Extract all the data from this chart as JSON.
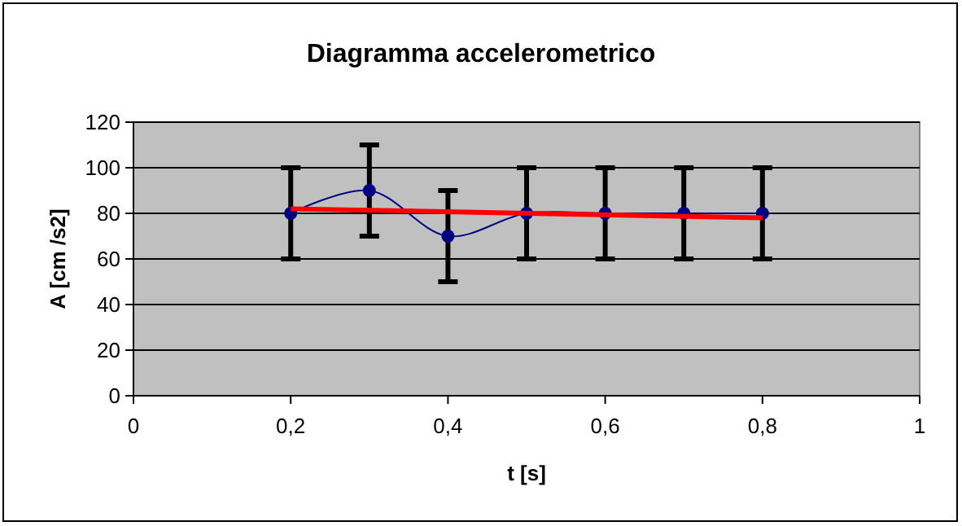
{
  "chart_data": {
    "type": "line",
    "title": "Diagramma accelerometrico",
    "xlabel": "t [s]",
    "ylabel": "A [cm /s2]",
    "x": [
      0.2,
      0.3,
      0.4,
      0.5,
      0.6,
      0.7,
      0.8
    ],
    "series": [
      {
        "color": "#000080",
        "values": [
          80,
          90,
          70,
          80,
          80,
          80,
          80
        ],
        "errors": [
          20,
          20,
          20,
          20,
          20,
          20,
          20
        ],
        "marker": "circle"
      },
      {
        "type": "line",
        "color": "#ff0000",
        "x": [
          0.2,
          0.8
        ],
        "values": [
          82,
          78
        ],
        "marker": "none"
      }
    ],
    "xlim": [
      0,
      1
    ],
    "xticks": [
      0,
      {
        "value": 0.2,
        "label": "0,2"
      },
      {
        "value": 0.4,
        "label": "0,4"
      },
      {
        "value": 0.6,
        "label": "0,6"
      },
      {
        "value": 0.8,
        "label": "0,8"
      },
      1
    ],
    "ylim": [
      0,
      120
    ],
    "yticks": [
      0,
      20,
      40,
      60,
      80,
      100,
      120
    ],
    "grid": "y"
  }
}
